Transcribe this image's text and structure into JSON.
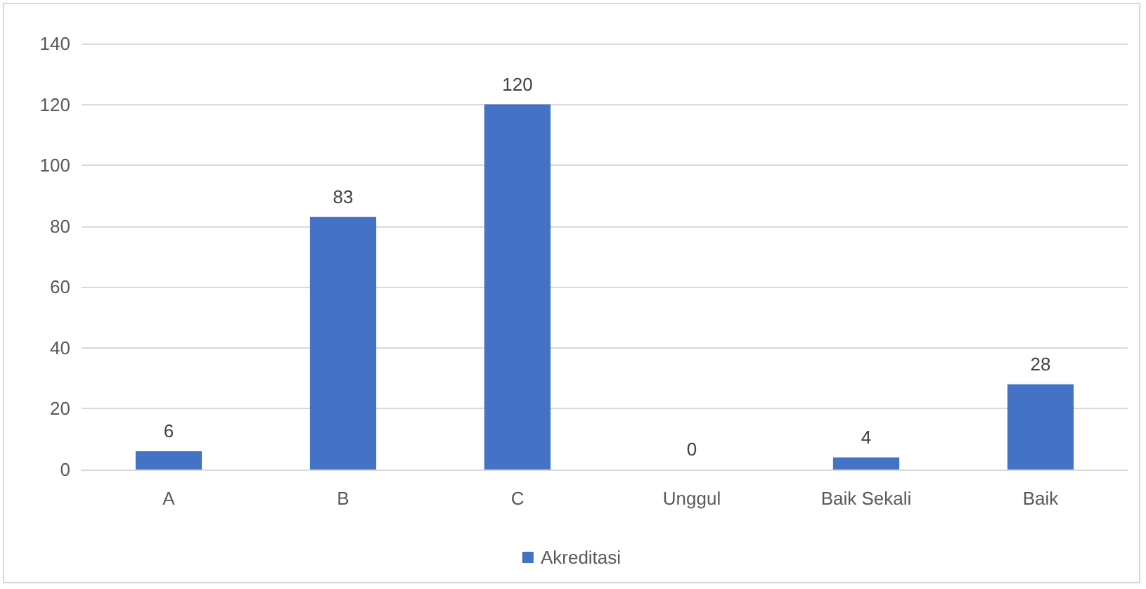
{
  "chart_data": {
    "type": "bar",
    "categories": [
      "A",
      "B",
      "C",
      "Unggul",
      "Baik Sekali",
      "Baik"
    ],
    "series": [
      {
        "name": "Akreditasi",
        "color": "#4472c4",
        "values": [
          6,
          83,
          120,
          0,
          4,
          28
        ]
      }
    ],
    "ylim": [
      0,
      140
    ],
    "yticks": [
      0,
      20,
      40,
      60,
      80,
      100,
      120,
      140
    ],
    "grid": "y",
    "legend": "bottom",
    "data_labels": true
  }
}
